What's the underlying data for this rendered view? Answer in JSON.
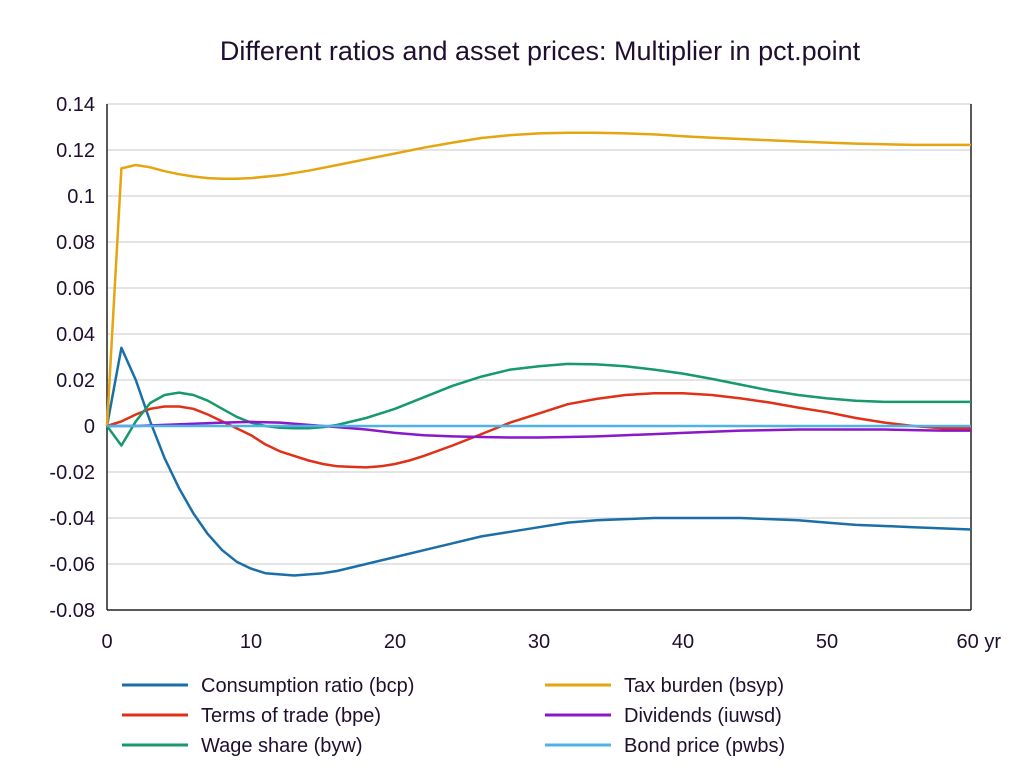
{
  "chart_data": {
    "type": "line",
    "title": "Different ratios and asset prices: Multiplier in pct.point",
    "x_unit_label": "yr",
    "xlim": [
      0,
      60
    ],
    "ylim": [
      -0.08,
      0.14
    ],
    "x_ticks": [
      0,
      10,
      20,
      30,
      40,
      50,
      60
    ],
    "x_tick_labels": [
      "0",
      "10",
      "20",
      "30",
      "40",
      "50",
      "60 yr"
    ],
    "y_ticks": [
      -0.08,
      -0.06,
      -0.04,
      -0.02,
      0,
      0.02,
      0.04,
      0.06,
      0.08,
      0.1,
      0.12,
      0.14
    ],
    "y_tick_labels": [
      "-0.08",
      "-0.06",
      "-0.04",
      "-0.02",
      "0",
      "0.02",
      "0.04",
      "0.06",
      "0.08",
      "0.1",
      "0.12",
      "0.14"
    ],
    "zero_line": true,
    "legend_position": "bottom",
    "series": [
      {
        "name": "Consumption ratio (bcp)",
        "color": "#1a6fa8",
        "x": [
          0,
          1,
          2,
          3,
          4,
          5,
          6,
          7,
          8,
          9,
          10,
          11,
          12,
          13,
          14,
          15,
          16,
          18,
          20,
          22,
          24,
          26,
          28,
          30,
          32,
          34,
          36,
          38,
          40,
          42,
          44,
          46,
          48,
          50,
          52,
          54,
          56,
          58,
          60
        ],
        "y": [
          0,
          0.034,
          0.02,
          0.002,
          -0.014,
          -0.027,
          -0.038,
          -0.047,
          -0.054,
          -0.059,
          -0.062,
          -0.064,
          -0.0645,
          -0.065,
          -0.0645,
          -0.064,
          -0.063,
          -0.06,
          -0.057,
          -0.054,
          -0.051,
          -0.048,
          -0.046,
          -0.044,
          -0.042,
          -0.041,
          -0.0405,
          -0.04,
          -0.04,
          -0.04,
          -0.04,
          -0.0405,
          -0.041,
          -0.042,
          -0.043,
          -0.0435,
          -0.044,
          -0.0445,
          -0.045
        ]
      },
      {
        "name": "Terms of trade (bpe)",
        "color": "#e03018",
        "x": [
          0,
          1,
          2,
          3,
          4,
          5,
          6,
          7,
          8,
          9,
          10,
          11,
          12,
          13,
          14,
          15,
          16,
          17,
          18,
          19,
          20,
          21,
          22,
          24,
          26,
          28,
          30,
          32,
          34,
          36,
          38,
          40,
          42,
          44,
          46,
          48,
          50,
          52,
          54,
          56,
          58,
          60
        ],
        "y": [
          0,
          0.002,
          0.005,
          0.0075,
          0.0085,
          0.0085,
          0.0075,
          0.005,
          0.002,
          -0.001,
          -0.004,
          -0.008,
          -0.011,
          -0.013,
          -0.015,
          -0.0165,
          -0.0175,
          -0.0178,
          -0.018,
          -0.0175,
          -0.0165,
          -0.015,
          -0.013,
          -0.0085,
          -0.0035,
          0.0015,
          0.0055,
          0.0095,
          0.0118,
          0.0135,
          0.0142,
          0.0142,
          0.0135,
          0.012,
          0.0102,
          0.008,
          0.006,
          0.0035,
          0.0015,
          0,
          -0.001,
          -0.001
        ]
      },
      {
        "name": "Wage share (byw)",
        "color": "#16996b",
        "x": [
          0,
          1,
          2,
          3,
          4,
          5,
          6,
          7,
          8,
          9,
          10,
          11,
          12,
          13,
          14,
          15,
          16,
          18,
          20,
          22,
          24,
          26,
          28,
          30,
          32,
          34,
          36,
          38,
          40,
          42,
          44,
          46,
          48,
          50,
          52,
          54,
          56,
          58,
          60
        ],
        "y": [
          0,
          -0.0085,
          0.002,
          0.01,
          0.0135,
          0.0145,
          0.0135,
          0.011,
          0.0075,
          0.004,
          0.0015,
          0,
          -0.0008,
          -0.001,
          -0.001,
          -0.0005,
          0.0005,
          0.0035,
          0.0075,
          0.0125,
          0.0175,
          0.0215,
          0.0245,
          0.026,
          0.027,
          0.0268,
          0.026,
          0.0245,
          0.0228,
          0.0205,
          0.018,
          0.0155,
          0.0135,
          0.012,
          0.011,
          0.0105,
          0.0105,
          0.0105,
          0.0105
        ]
      },
      {
        "name": "Tax burden (bsyp)",
        "color": "#e6a50f",
        "x": [
          0,
          1,
          2,
          3,
          4,
          5,
          6,
          7,
          8,
          9,
          10,
          12,
          14,
          16,
          18,
          20,
          22,
          24,
          26,
          28,
          30,
          32,
          34,
          36,
          38,
          40,
          42,
          44,
          46,
          48,
          50,
          52,
          54,
          56,
          58,
          60
        ],
        "y": [
          0,
          0.112,
          0.1135,
          0.1125,
          0.1108,
          0.1095,
          0.1085,
          0.1078,
          0.1075,
          0.1075,
          0.1078,
          0.109,
          0.111,
          0.1135,
          0.116,
          0.1185,
          0.121,
          0.1232,
          0.1252,
          0.1265,
          0.1272,
          0.1275,
          0.1275,
          0.1272,
          0.1268,
          0.126,
          0.1253,
          0.1248,
          0.1242,
          0.1237,
          0.1232,
          0.1228,
          0.1225,
          0.1222,
          0.1222,
          0.1222
        ]
      },
      {
        "name": "Dividends (iuwsd)",
        "color": "#8a18c8",
        "x": [
          0,
          2,
          4,
          6,
          8,
          10,
          12,
          14,
          16,
          18,
          20,
          22,
          24,
          26,
          28,
          30,
          32,
          34,
          36,
          38,
          40,
          42,
          44,
          46,
          48,
          50,
          52,
          54,
          56,
          58,
          60
        ],
        "y": [
          0,
          0,
          0.0005,
          0.001,
          0.0015,
          0.0018,
          0.0015,
          0.0005,
          -0.0005,
          -0.0015,
          -0.003,
          -0.004,
          -0.0045,
          -0.0048,
          -0.005,
          -0.005,
          -0.0048,
          -0.0045,
          -0.004,
          -0.0035,
          -0.003,
          -0.0025,
          -0.002,
          -0.0018,
          -0.0015,
          -0.0015,
          -0.0015,
          -0.0015,
          -0.0018,
          -0.002,
          -0.002
        ]
      },
      {
        "name": "Bond price (pwbs)",
        "color": "#4db3e6",
        "x": [
          0,
          10,
          20,
          30,
          40,
          50,
          60
        ],
        "y": [
          0,
          0,
          0,
          0,
          0,
          0,
          0
        ]
      }
    ]
  }
}
